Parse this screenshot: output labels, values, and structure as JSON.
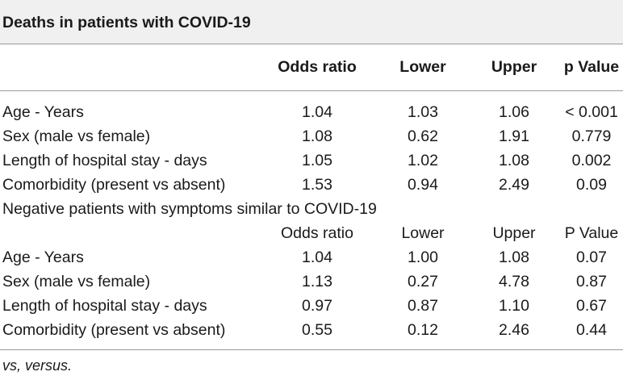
{
  "title": "Deaths in patients with COVID-19",
  "section1": {
    "headers": [
      "Odds ratio",
      "Lower",
      "Upper",
      "p Value"
    ],
    "rows": [
      {
        "label": "Age - Years",
        "or": "1.04",
        "lower": "1.03",
        "upper": "1.06",
        "p": "< 0.001"
      },
      {
        "label": "Sex (male vs female)",
        "or": "1.08",
        "lower": "0.62",
        "upper": "1.91",
        "p": "0.779"
      },
      {
        "label": "Length of hospital stay - days",
        "or": "1.05",
        "lower": "1.02",
        "upper": "1.08",
        "p": "0.002"
      },
      {
        "label": "Comorbidity (present vs absent)",
        "or": "1.53",
        "lower": "0.94",
        "upper": "2.49",
        "p": "0.09"
      }
    ]
  },
  "section2": {
    "label": "Negative patients with symptoms similar to COVID-19",
    "headers": [
      "Odds ratio",
      "Lower",
      "Upper",
      "P Value"
    ],
    "rows": [
      {
        "label": "Age - Years",
        "or": "1.04",
        "lower": "1.00",
        "upper": "1.08",
        "p": "0.07"
      },
      {
        "label": "Sex (male vs female)",
        "or": "1.13",
        "lower": "0.27",
        "upper": "4.78",
        "p": "0.87"
      },
      {
        "label": "Length of hospital stay - days",
        "or": "0.97",
        "lower": "0.87",
        "upper": "1.10",
        "p": "0.67"
      },
      {
        "label": "Comorbidity (present vs absent)",
        "or": "0.55",
        "lower": "0.12",
        "upper": "2.46",
        "p": "0.44"
      }
    ]
  },
  "footnote": "vs, versus."
}
